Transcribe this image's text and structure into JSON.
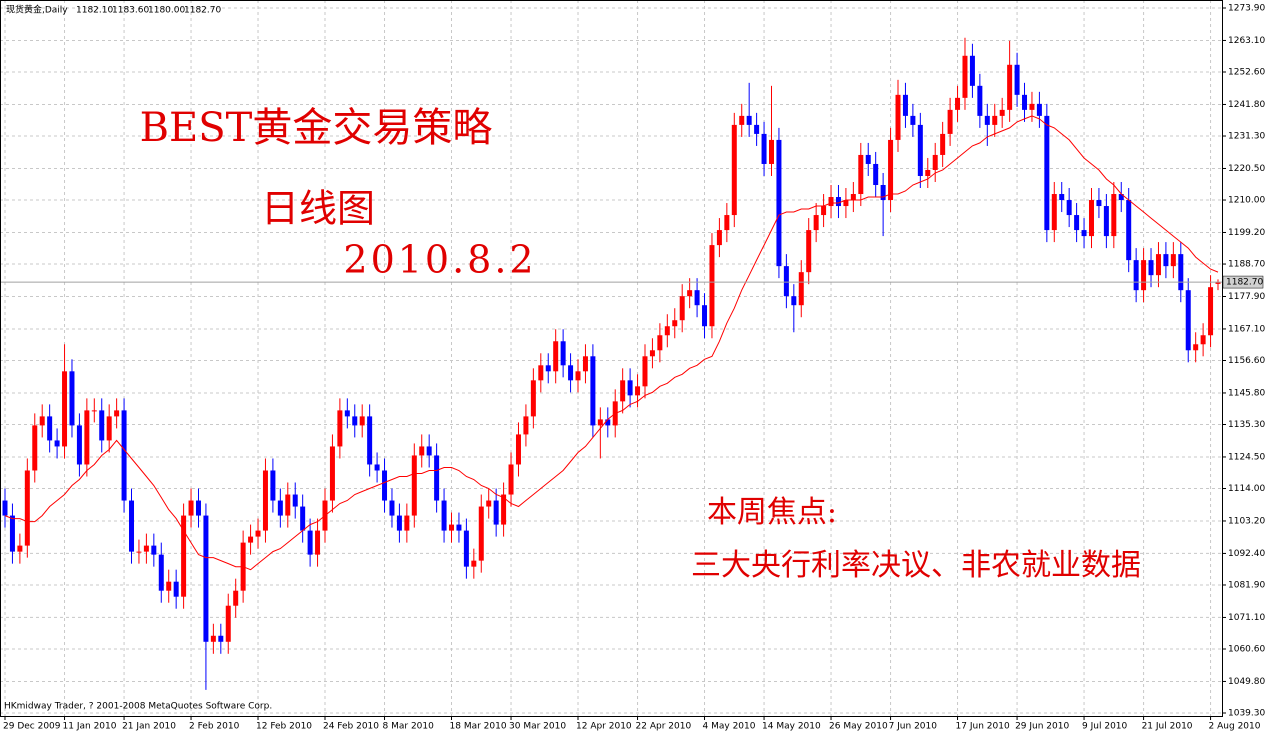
{
  "chart_data": {
    "type": "candlestick",
    "title": "现货黄金,Daily",
    "header_labels": [
      "1182.10",
      "1183.60",
      "1180.00",
      "1182.70"
    ],
    "footer": "HKmidway Trader, ? 2001-2008 MetaQuotes Software Corp.",
    "annotations": [
      "BEST黄金交易策略",
      "日线图",
      "2010.8.2",
      "本周焦点:",
      "三大央行利率决议、非农就业数据"
    ],
    "up_color": "#ff0000",
    "down_color": "#0000ff",
    "ma_color": "#ff0000",
    "grid": true,
    "ylim": [
      1039.3,
      1273.9
    ],
    "yticks": [
      {
        "value": 1273.9,
        "label": "1273.90"
      },
      {
        "value": 1263.1,
        "label": "1263.10"
      },
      {
        "value": 1252.6,
        "label": "1252.60"
      },
      {
        "value": 1241.8,
        "label": "1241.80"
      },
      {
        "value": 1231.3,
        "label": "1231.30"
      },
      {
        "value": 1220.5,
        "label": "1220.50"
      },
      {
        "value": 1210,
        "label": "1210.00"
      },
      {
        "value": 1199.2,
        "label": "1199.20"
      },
      {
        "value": 1188.7,
        "label": "1188.70"
      },
      {
        "value": 1177.9,
        "label": "1177.90"
      },
      {
        "value": 1167.1,
        "label": "1167.10"
      },
      {
        "value": 1156.6,
        "label": "1156.60"
      },
      {
        "value": 1145.8,
        "label": "1145.80"
      },
      {
        "value": 1135.3,
        "label": "1135.30"
      },
      {
        "value": 1124.5,
        "label": "1124.50"
      },
      {
        "value": 1114,
        "label": "1114.00"
      },
      {
        "value": 1103.2,
        "label": "1103.20"
      },
      {
        "value": 1092.4,
        "label": "1092.40"
      },
      {
        "value": 1081.9,
        "label": "1081.90"
      },
      {
        "value": 1071.1,
        "label": "1071.10"
      },
      {
        "value": 1060.6,
        "label": "1060.60"
      },
      {
        "value": 1049.8,
        "label": "1049.80"
      },
      {
        "value": 1039.3,
        "label": "1039.30"
      }
    ],
    "xticks": [
      {
        "value": 0,
        "label": "29 Dec 2009"
      },
      {
        "value": 8,
        "label": "11 Jan 2010"
      },
      {
        "value": 16,
        "label": "21 Jan 2010"
      },
      {
        "value": 25,
        "label": "2 Feb 2010"
      },
      {
        "value": 34,
        "label": "12 Feb 2010"
      },
      {
        "value": 43,
        "label": "24 Feb 2010"
      },
      {
        "value": 51,
        "label": "8 Mar 2010"
      },
      {
        "value": 60,
        "label": "18 Mar 2010"
      },
      {
        "value": 68,
        "label": "30 Mar 2010"
      },
      {
        "value": 77,
        "label": "12 Apr 2010"
      },
      {
        "value": 85,
        "label": "22 Apr 2010"
      },
      {
        "value": 94,
        "label": "4 May 2010"
      },
      {
        "value": 102,
        "label": "14 May 2010"
      },
      {
        "value": 111,
        "label": "26 May 2010"
      },
      {
        "value": 119,
        "label": "7 Jun 2010"
      },
      {
        "value": 128,
        "label": "17 Jun 2010"
      },
      {
        "value": 136,
        "label": "29 Jun 2010"
      },
      {
        "value": 145,
        "label": "9 Jul 2010"
      },
      {
        "value": 153,
        "label": "21 Jul 2010"
      },
      {
        "value": 162,
        "label": "2 Aug 2010"
      }
    ],
    "open": [
      1110,
      1105,
      1093,
      1095,
      1120,
      1135,
      1138,
      1130,
      1128,
      1153,
      1135,
      1122,
      1140,
      1140,
      1130,
      1138,
      1140,
      1110,
      1093,
      1093,
      1095,
      1092,
      1080,
      1083,
      1078,
      1105,
      1110,
      1105,
      1063,
      1065,
      1063,
      1075,
      1080,
      1096,
      1098,
      1100,
      1120,
      1110,
      1105,
      1112,
      1108,
      1100,
      1092,
      1100,
      1110,
      1128,
      1140,
      1138,
      1135,
      1138,
      1122,
      1120,
      1110,
      1105,
      1100,
      1105,
      1125,
      1128,
      1125,
      1110,
      1100,
      1102,
      1100,
      1088,
      1090,
      1108,
      1110,
      1102,
      1112,
      1122,
      1132,
      1138,
      1150,
      1155,
      1153,
      1163,
      1155,
      1150,
      1153,
      1158,
      1135,
      1137,
      1135,
      1143,
      1150,
      1145,
      1148,
      1158,
      1160,
      1165,
      1168,
      1170,
      1178,
      1180,
      1175,
      1168,
      1195,
      1200,
      1205,
      1235,
      1238,
      1235,
      1232,
      1222,
      1230,
      1188,
      1178,
      1175,
      1186,
      1200,
      1205,
      1208,
      1211,
      1208,
      1210,
      1212,
      1225,
      1222,
      1215,
      1210,
      1230,
      1245,
      1238,
      1235,
      1218,
      1220,
      1225,
      1232,
      1240,
      1244,
      1258,
      1248,
      1238,
      1235,
      1238,
      1240,
      1255,
      1245,
      1240,
      1242,
      1238,
      1200,
      1212,
      1210,
      1205,
      1200,
      1198,
      1210,
      1208,
      1198,
      1212,
      1210,
      1190,
      1180,
      1190,
      1185,
      1192,
      1188,
      1192,
      1180,
      1160,
      1162,
      1165,
      1182.1
    ],
    "high": [
      1114,
      1109,
      1099,
      1124,
      1139,
      1142,
      1142,
      1134,
      1162,
      1157,
      1139,
      1144,
      1144,
      1144,
      1142,
      1144,
      1144,
      1114,
      1097,
      1099,
      1099,
      1096,
      1087,
      1087,
      1109,
      1114,
      1114,
      1109,
      1069,
      1069,
      1079,
      1084,
      1100,
      1102,
      1104,
      1124,
      1124,
      1114,
      1116,
      1116,
      1112,
      1104,
      1104,
      1114,
      1132,
      1144,
      1144,
      1142,
      1142,
      1142,
      1126,
      1124,
      1114,
      1109,
      1109,
      1129,
      1132,
      1132,
      1129,
      1114,
      1106,
      1106,
      1104,
      1094,
      1112,
      1114,
      1114,
      1116,
      1126,
      1136,
      1142,
      1154,
      1159,
      1159,
      1167,
      1167,
      1159,
      1157,
      1162,
      1162,
      1141,
      1141,
      1147,
      1154,
      1154,
      1152,
      1162,
      1164,
      1169,
      1172,
      1174,
      1182,
      1184,
      1184,
      1179,
      1199,
      1204,
      1209,
      1239,
      1242,
      1249,
      1239,
      1236,
      1248,
      1234,
      1192,
      1182,
      1190,
      1204,
      1209,
      1212,
      1215,
      1215,
      1214,
      1216,
      1229,
      1229,
      1226,
      1219,
      1234,
      1250,
      1249,
      1242,
      1239,
      1224,
      1229,
      1236,
      1244,
      1248,
      1264,
      1262,
      1252,
      1242,
      1242,
      1244,
      1263,
      1259,
      1249,
      1246,
      1246,
      1242,
      1216,
      1216,
      1214,
      1209,
      1204,
      1214,
      1214,
      1212,
      1216,
      1216,
      1214,
      1194,
      1194,
      1194,
      1196,
      1196,
      1196,
      1196,
      1184,
      1166,
      1169,
      1185,
      1183.6
    ],
    "low": [
      1101,
      1089,
      1089,
      1091,
      1116,
      1131,
      1126,
      1124,
      1124,
      1131,
      1118,
      1118,
      1136,
      1126,
      1126,
      1134,
      1106,
      1089,
      1089,
      1089,
      1088,
      1076,
      1076,
      1074,
      1074,
      1101,
      1101,
      1047,
      1059,
      1059,
      1059,
      1071,
      1076,
      1092,
      1094,
      1096,
      1106,
      1101,
      1101,
      1104,
      1096,
      1088,
      1088,
      1096,
      1106,
      1124,
      1134,
      1131,
      1131,
      1118,
      1116,
      1106,
      1101,
      1096,
      1096,
      1101,
      1121,
      1121,
      1106,
      1096,
      1096,
      1096,
      1084,
      1084,
      1086,
      1104,
      1098,
      1098,
      1108,
      1118,
      1128,
      1134,
      1146,
      1149,
      1149,
      1151,
      1146,
      1146,
      1149,
      1131,
      1124,
      1131,
      1131,
      1139,
      1141,
      1141,
      1144,
      1154,
      1156,
      1161,
      1164,
      1166,
      1174,
      1171,
      1164,
      1164,
      1191,
      1196,
      1201,
      1231,
      1231,
      1228,
      1218,
      1218,
      1184,
      1174,
      1166,
      1171,
      1182,
      1196,
      1201,
      1204,
      1204,
      1204,
      1206,
      1208,
      1218,
      1211,
      1198,
      1206,
      1226,
      1234,
      1231,
      1214,
      1214,
      1216,
      1221,
      1228,
      1236,
      1240,
      1244,
      1234,
      1228,
      1231,
      1234,
      1236,
      1241,
      1236,
      1236,
      1234,
      1196,
      1196,
      1206,
      1201,
      1196,
      1194,
      1194,
      1204,
      1194,
      1194,
      1206,
      1186,
      1176,
      1176,
      1181,
      1181,
      1184,
      1184,
      1176,
      1156,
      1156,
      1158,
      1161,
      1180
    ],
    "close": [
      1105,
      1093,
      1095,
      1120,
      1135,
      1138,
      1130,
      1128,
      1153,
      1135,
      1122,
      1140,
      1140,
      1130,
      1138,
      1140,
      1110,
      1093,
      1093,
      1095,
      1092,
      1080,
      1083,
      1078,
      1105,
      1110,
      1105,
      1063,
      1065,
      1063,
      1075,
      1080,
      1096,
      1098,
      1100,
      1120,
      1110,
      1105,
      1112,
      1108,
      1100,
      1092,
      1100,
      1110,
      1128,
      1140,
      1138,
      1135,
      1138,
      1122,
      1120,
      1110,
      1105,
      1100,
      1105,
      1125,
      1128,
      1125,
      1110,
      1100,
      1102,
      1100,
      1088,
      1090,
      1108,
      1110,
      1102,
      1112,
      1122,
      1132,
      1138,
      1150,
      1155,
      1153,
      1163,
      1155,
      1150,
      1153,
      1158,
      1135,
      1137,
      1135,
      1143,
      1150,
      1145,
      1148,
      1158,
      1160,
      1165,
      1168,
      1170,
      1178,
      1180,
      1175,
      1168,
      1195,
      1200,
      1205,
      1235,
      1238,
      1235,
      1232,
      1222,
      1230,
      1188,
      1178,
      1175,
      1186,
      1200,
      1205,
      1208,
      1211,
      1208,
      1210,
      1212,
      1225,
      1222,
      1215,
      1210,
      1230,
      1245,
      1238,
      1235,
      1218,
      1220,
      1225,
      1232,
      1240,
      1244,
      1258,
      1248,
      1238,
      1235,
      1238,
      1240,
      1255,
      1245,
      1240,
      1242,
      1238,
      1200,
      1212,
      1210,
      1205,
      1200,
      1198,
      1210,
      1208,
      1198,
      1212,
      1210,
      1190,
      1180,
      1190,
      1185,
      1192,
      1188,
      1192,
      1180,
      1160,
      1162,
      1165,
      1181,
      1182.7
    ],
    "ma_values": [
      1105,
      1104,
      1104,
      1103,
      1103,
      1105,
      1108,
      1110,
      1112,
      1115,
      1117,
      1120,
      1122,
      1125,
      1127,
      1130,
      1127,
      1124,
      1121,
      1118,
      1115,
      1111,
      1107,
      1104,
      1100,
      1096,
      1092,
      1091,
      1091,
      1090,
      1089,
      1088,
      1088,
      1087,
      1089,
      1091,
      1093,
      1094,
      1096,
      1098,
      1100,
      1102,
      1103,
      1105,
      1107,
      1109,
      1110,
      1112,
      1113,
      1114,
      1115,
      1116,
      1117,
      1118,
      1118,
      1119,
      1119,
      1120,
      1120,
      1121,
      1121,
      1120,
      1118,
      1117,
      1115,
      1114,
      1112,
      1111,
      1109,
      1108,
      1110,
      1112,
      1114,
      1116,
      1118,
      1120,
      1123,
      1126,
      1128,
      1131,
      1134,
      1137,
      1139,
      1140,
      1142,
      1143,
      1145,
      1146,
      1148,
      1149,
      1151,
      1152,
      1154,
      1155,
      1157,
      1158,
      1163,
      1169,
      1174,
      1180,
      1185,
      1190,
      1195,
      1200,
      1205,
      1206,
      1206,
      1207,
      1207,
      1208,
      1208,
      1209,
      1209,
      1210,
      1210,
      1210,
      1211,
      1211,
      1211,
      1212,
      1212,
      1213,
      1215,
      1216,
      1217,
      1219,
      1220,
      1222,
      1224,
      1226,
      1228,
      1229,
      1231,
      1232,
      1233,
      1234,
      1236,
      1237,
      1238,
      1237,
      1235,
      1234,
      1232,
      1230,
      1227,
      1224,
      1222,
      1220,
      1217,
      1215,
      1212,
      1210,
      1208,
      1206,
      1204,
      1202,
      1200,
      1198,
      1196,
      1194,
      1191,
      1189,
      1187,
      1186
    ]
  }
}
